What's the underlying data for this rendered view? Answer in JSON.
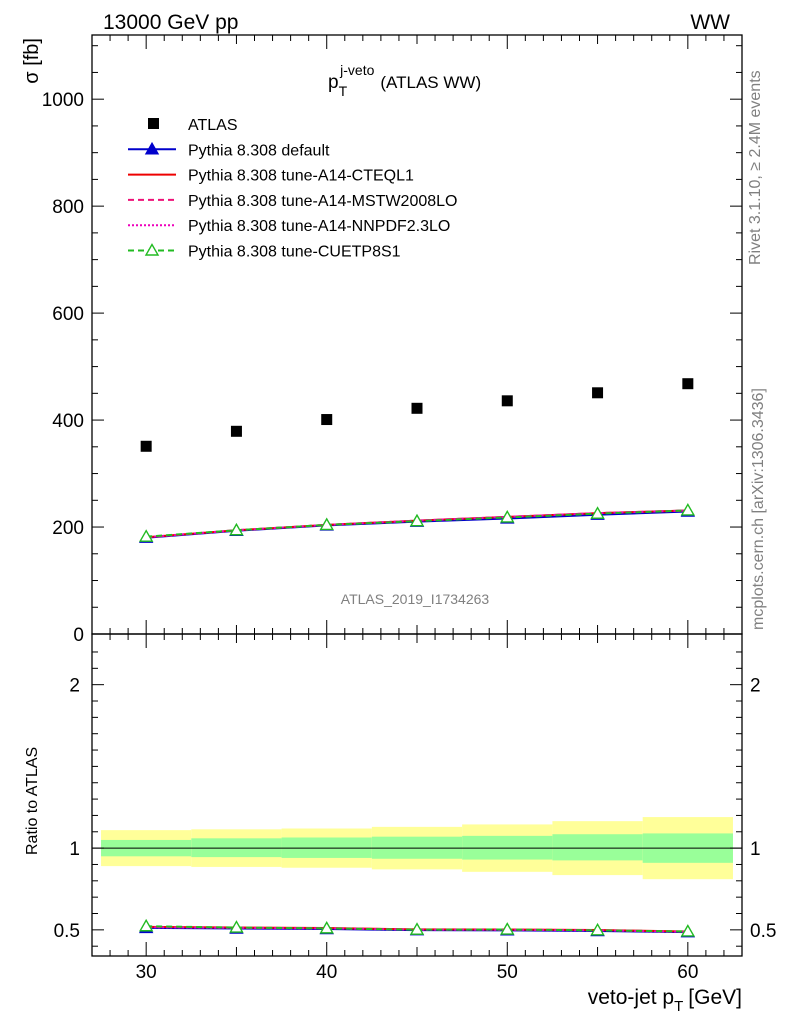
{
  "header": {
    "energy_label": "13000 GeV pp",
    "process_label": "WW"
  },
  "side_labels": {
    "rivet": "Rivet 3.1.10, ≥ 2.4M events",
    "mcplots": "mcplots.cern.ch [arXiv:1306.3436]"
  },
  "watermark": "ATLAS_2019_I1734263",
  "main_plot": {
    "title_main": "p",
    "title_sub": "T",
    "title_sup": "j-veto",
    "title_suffix": "(ATLAS WW)",
    "ylabel": "σ [fb]",
    "y_ticks": [
      "0",
      "200",
      "400",
      "600",
      "800",
      "1000"
    ],
    "y_tick_values": [
      0,
      200,
      400,
      600,
      800,
      1000
    ]
  },
  "ratio_plot": {
    "ylabel": "Ratio to ATLAS",
    "y_ticks": [
      "0.5",
      "1",
      "2"
    ],
    "y_tick_values": [
      0.5,
      1,
      2
    ]
  },
  "x_axis": {
    "label_main": "veto-jet p",
    "label_sub": "T",
    "label_suffix": "[GeV]",
    "ticks": [
      "30",
      "40",
      "50",
      "60"
    ],
    "tick_values": [
      30,
      40,
      50,
      60
    ]
  },
  "legend": [
    {
      "label": "ATLAS",
      "color": "#000000",
      "style": "marker-square"
    },
    {
      "label": "Pythia 8.308 default",
      "color": "#0000cc",
      "style": "solid-triangle"
    },
    {
      "label": "Pythia 8.308 tune-A14-CTEQL1",
      "color": "#ee0000",
      "style": "solid"
    },
    {
      "label": "Pythia 8.308 tune-A14-MSTW2008LO",
      "color": "#ee1177",
      "style": "dashed"
    },
    {
      "label": "Pythia 8.308 tune-A14-NNPDF2.3LO",
      "color": "#ee00bb",
      "style": "dotted"
    },
    {
      "label": "Pythia 8.308 tune-CUETP8S1",
      "color": "#22bb22",
      "style": "dashed-open-triangle"
    }
  ],
  "chart_data": {
    "type": "scatter",
    "x": [
      30,
      35,
      40,
      45,
      50,
      55,
      60
    ],
    "x_bin_edges": [
      27.5,
      32.5,
      37.5,
      42.5,
      47.5,
      52.5,
      57.5,
      62.5
    ],
    "xlim": [
      27,
      63
    ],
    "ylim": [
      0,
      1120
    ],
    "ratio_ylim": [
      0.34,
      2.31
    ],
    "data": {
      "name": "ATLAS",
      "values": [
        351,
        379,
        401,
        422,
        436,
        451,
        468
      ]
    },
    "series": [
      {
        "name": "Pythia 8.308 default",
        "values": [
          180,
          193,
          203,
          210,
          216,
          223,
          229
        ]
      },
      {
        "name": "Pythia 8.308 tune-A14-CTEQL1",
        "values": [
          181,
          194,
          204,
          212,
          219,
          226,
          231
        ]
      },
      {
        "name": "Pythia 8.308 tune-A14-MSTW2008LO",
        "values": [
          181,
          194,
          204,
          212,
          219,
          226,
          231
        ]
      },
      {
        "name": "Pythia 8.308 tune-A14-NNPDF2.3LO",
        "values": [
          181,
          194,
          204,
          212,
          219,
          226,
          231
        ]
      },
      {
        "name": "Pythia 8.308 tune-CUETP8S1",
        "values": [
          182,
          194,
          204,
          211,
          218,
          225,
          231
        ]
      }
    ],
    "ratio_series": [
      {
        "name": "Pythia 8.308 default",
        "values": [
          0.512,
          0.508,
          0.505,
          0.498,
          0.497,
          0.493,
          0.486
        ]
      },
      {
        "name": "Pythia 8.308 tune-A14-CTEQL1",
        "values": [
          0.518,
          0.514,
          0.511,
          0.503,
          0.502,
          0.499,
          0.49
        ]
      },
      {
        "name": "Pythia 8.308 tune-A14-MSTW2008LO",
        "values": [
          0.517,
          0.513,
          0.51,
          0.502,
          0.501,
          0.498,
          0.489
        ]
      },
      {
        "name": "Pythia 8.308 tune-A14-NNPDF2.3LO",
        "values": [
          0.516,
          0.512,
          0.509,
          0.501,
          0.5,
          0.497,
          0.488
        ]
      },
      {
        "name": "Pythia 8.308 tune-CUETP8S1",
        "values": [
          0.522,
          0.514,
          0.509,
          0.501,
          0.502,
          0.497,
          0.49
        ]
      }
    ],
    "ratio_bands": {
      "stat_color": "#99ff99",
      "total_color": "#ffff99",
      "stat_lo": [
        0.95,
        0.945,
        0.94,
        0.935,
        0.93,
        0.925,
        0.91
      ],
      "stat_hi": [
        1.05,
        1.06,
        1.065,
        1.07,
        1.075,
        1.085,
        1.09
      ],
      "total_lo": [
        0.89,
        0.885,
        0.88,
        0.87,
        0.855,
        0.835,
        0.81
      ],
      "total_hi": [
        1.11,
        1.115,
        1.12,
        1.13,
        1.145,
        1.165,
        1.19
      ]
    }
  }
}
